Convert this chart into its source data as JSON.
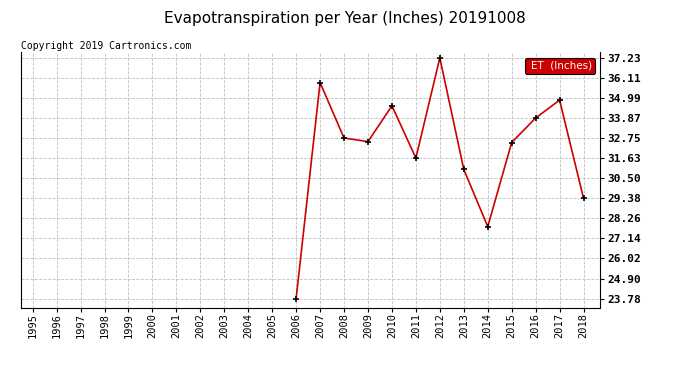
{
  "title": "Evapotranspiration per Year (Inches) 20191008",
  "copyright_text": "Copyright 2019 Cartronics.com",
  "legend_label": "ET  (Inches)",
  "years": [
    1995,
    1996,
    1997,
    1998,
    1999,
    2000,
    2001,
    2002,
    2003,
    2004,
    2005,
    2006,
    2007,
    2008,
    2009,
    2010,
    2011,
    2012,
    2013,
    2014,
    2015,
    2016,
    2017,
    2018
  ],
  "values": [
    null,
    null,
    null,
    null,
    null,
    null,
    null,
    null,
    null,
    null,
    null,
    23.78,
    35.85,
    32.75,
    32.55,
    34.55,
    31.63,
    37.23,
    31.0,
    27.8,
    32.5,
    33.87,
    34.87,
    29.38
  ],
  "ylim_min": 23.78,
  "ylim_max": 37.23,
  "yticks": [
    23.78,
    24.9,
    26.02,
    27.14,
    28.26,
    29.38,
    30.5,
    31.63,
    32.75,
    33.87,
    34.99,
    36.11,
    37.23
  ],
  "line_color": "#cc0000",
  "marker_color": "#000000",
  "grid_color": "#c0c0c0",
  "background_color": "#ffffff",
  "title_fontsize": 11,
  "copyright_fontsize": 7,
  "tick_fontsize": 7.5,
  "ytick_fontsize": 8,
  "legend_bg_color": "#cc0000",
  "legend_text_color": "#ffffff"
}
